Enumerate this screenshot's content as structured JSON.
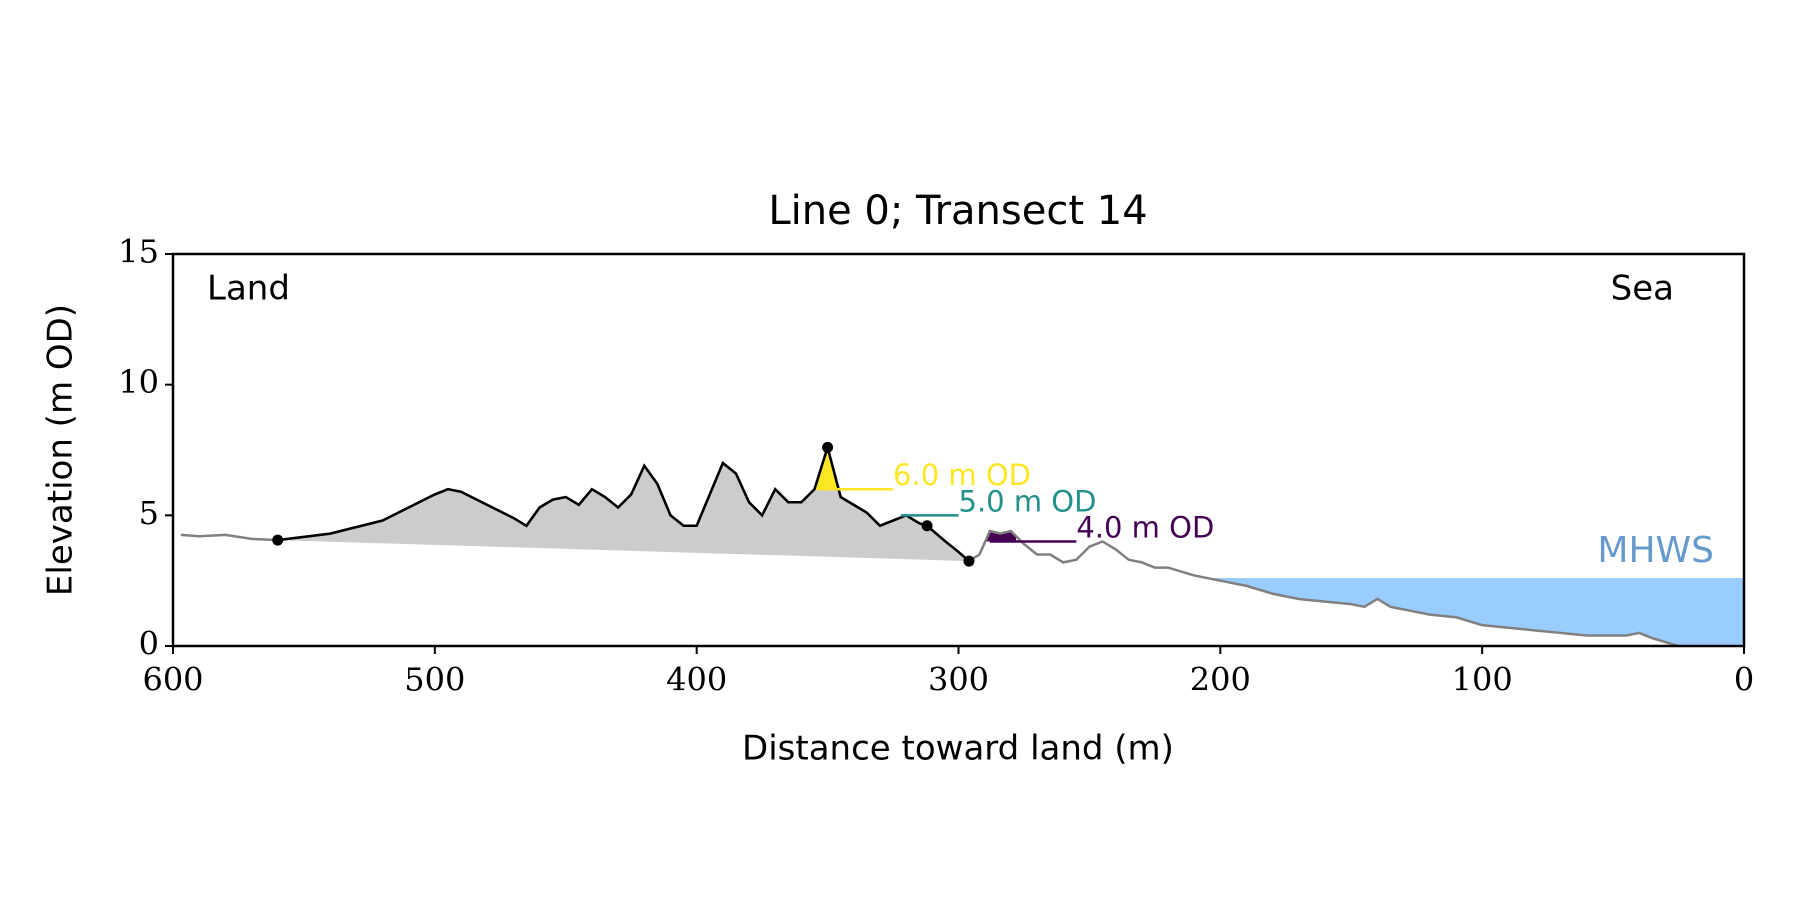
{
  "chart_data": {
    "type": "line",
    "title": "Line 0; Transect 14",
    "x_label": "Distance toward land (m)",
    "y_label": "Elevation (m OD)",
    "annotations": [
      "Land",
      "Sea"
    ],
    "xlim": [
      600,
      0
    ],
    "ylim": [
      0,
      15
    ],
    "xticks": [
      600,
      500,
      400,
      300,
      200,
      100,
      0
    ],
    "yticks": [
      0,
      5,
      10,
      15
    ],
    "x": [
      597,
      590,
      580,
      570,
      560,
      540,
      520,
      500,
      495,
      490,
      480,
      470,
      465,
      460,
      455,
      450,
      445,
      440,
      435,
      430,
      425,
      420,
      415,
      410,
      405,
      400,
      395,
      390,
      385,
      380,
      375,
      370,
      365,
      360,
      355,
      350,
      345,
      340,
      335,
      330,
      325,
      320,
      315,
      312,
      305,
      300,
      296,
      292,
      288,
      284,
      280,
      275,
      270,
      265,
      260,
      255,
      250,
      245,
      240,
      235,
      230,
      225,
      220,
      210,
      200,
      190,
      180,
      170,
      160,
      150,
      145,
      140,
      135,
      130,
      120,
      110,
      100,
      90,
      80,
      70,
      60,
      50,
      45,
      40,
      35,
      25
    ],
    "series": [
      {
        "color": "#808080",
        "crest_color": "#000000",
        "values": [
          4.25,
          4.2,
          4.25,
          4.1,
          4.05,
          4.3,
          4.8,
          5.8,
          6.0,
          5.9,
          5.4,
          4.9,
          4.6,
          5.3,
          5.6,
          5.7,
          5.4,
          6.0,
          5.7,
          5.3,
          5.8,
          6.9,
          6.2,
          5.0,
          4.6,
          4.6,
          5.8,
          7.0,
          6.6,
          5.5,
          5.0,
          6.0,
          5.5,
          5.5,
          6.0,
          7.6,
          5.7,
          5.4,
          5.1,
          4.6,
          4.8,
          5.0,
          4.7,
          4.6,
          4.0,
          3.6,
          3.25,
          3.5,
          4.4,
          4.3,
          4.4,
          3.9,
          3.5,
          3.5,
          3.2,
          3.3,
          3.8,
          4.0,
          3.7,
          3.3,
          3.2,
          3.0,
          3.0,
          2.7,
          2.5,
          2.3,
          2.0,
          1.8,
          1.7,
          1.6,
          1.5,
          1.8,
          1.5,
          1.4,
          1.2,
          1.1,
          0.8,
          0.7,
          0.6,
          0.5,
          0.4,
          0.4,
          0.4,
          0.5,
          0.3,
          0.0
        ]
      }
    ],
    "crest_x": [
      560,
      296
    ],
    "crest_fill": "#cccccc",
    "markers": [
      {
        "x": 560,
        "y": 4.05
      },
      {
        "x": 350,
        "y": 7.6
      },
      {
        "x": 312,
        "y": 4.6
      },
      {
        "x": 296,
        "y": 3.25
      }
    ],
    "levels": [
      {
        "label": "6.0 m OD",
        "value": 6.0,
        "color": "#fde725",
        "x_range": [
          354,
          325
        ],
        "fill_x": [
          356,
          344
        ]
      },
      {
        "label": "5.0 m OD",
        "value": 5.0,
        "color": "#21918c",
        "x_range": [
          322,
          300
        ],
        "fill_x": [
          321,
          319
        ]
      },
      {
        "label": "4.0 m OD",
        "value": 4.0,
        "color": "#440154",
        "x_range": [
          288,
          255
        ],
        "fill_x": [
          290,
          278
        ]
      }
    ],
    "mhws": {
      "label": "MHWS",
      "value": 2.6,
      "x_range": [
        205,
        0
      ],
      "color": "#99ccff",
      "text_color": "#6699cc"
    }
  }
}
